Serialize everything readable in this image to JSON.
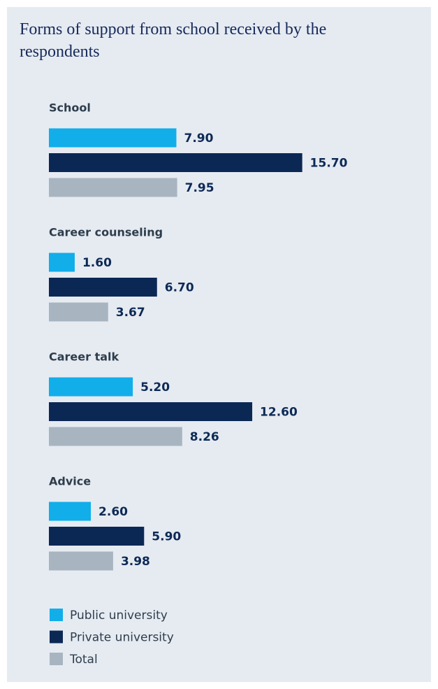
{
  "chart_data": {
    "type": "bar",
    "orientation": "horizontal",
    "title": "Forms of support from school received by the respondents",
    "categories": [
      "School",
      "Career counseling",
      "Career talk",
      "Advice"
    ],
    "series": [
      {
        "name": "Public university",
        "color": "#11aeea",
        "values": [
          7.9,
          1.6,
          5.2,
          2.6
        ],
        "value_labels": [
          "7.90",
          "1.60",
          "5.20",
          "2.60"
        ]
      },
      {
        "name": "Private university",
        "color": "#0b2855",
        "values": [
          15.7,
          6.7,
          12.6,
          5.9
        ],
        "value_labels": [
          "15.70",
          "6.70",
          "12.60",
          "5.90"
        ]
      },
      {
        "name": "Total",
        "color": "#a8b5c1",
        "values": [
          7.95,
          3.67,
          8.26,
          3.98
        ],
        "value_labels": [
          "7.95",
          "3.67",
          "8.26",
          "3.98"
        ]
      }
    ],
    "legend": "bottom-left"
  }
}
